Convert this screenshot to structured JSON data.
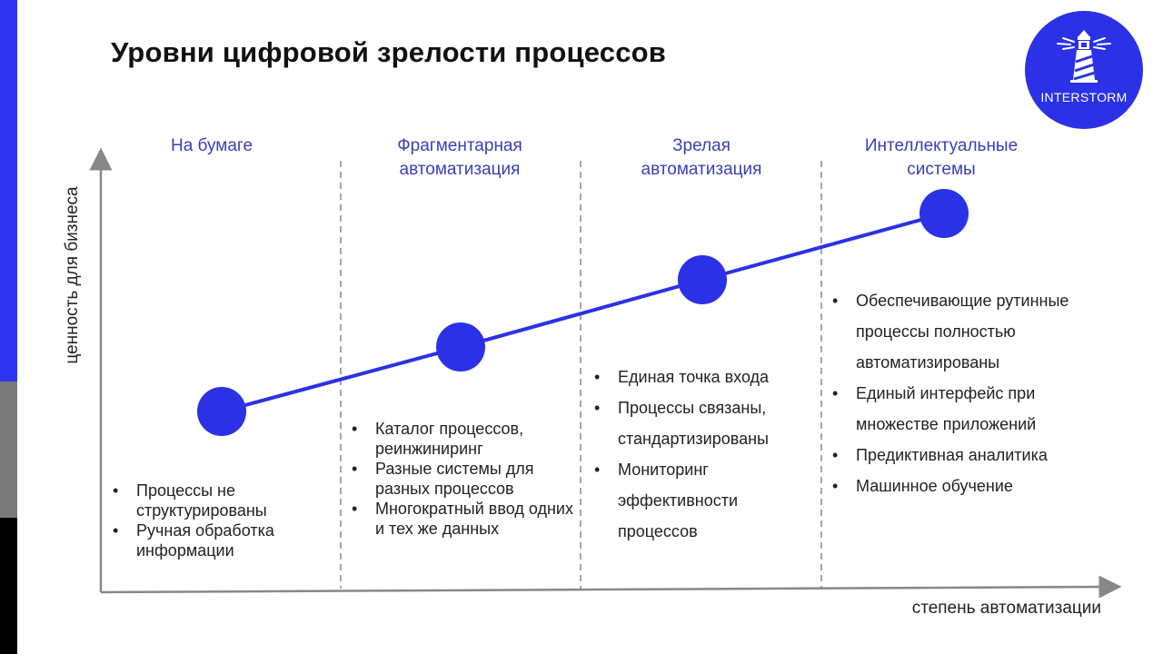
{
  "colors": {
    "accent": "#2b31e6",
    "stage_title": "#3a3fb8",
    "sidebar_blue": "#2f34f0",
    "sidebar_grey": "#7a7a7a",
    "sidebar_black": "#000000",
    "axis": "#888888"
  },
  "slide": {
    "title": "Уровни цифровой зрелости процессов"
  },
  "logo": {
    "text": "INTERSTORM",
    "icon": "lighthouse-icon"
  },
  "axes": {
    "y_label": "ценность для бизнеса",
    "x_label": "степень автоматизации"
  },
  "stages": [
    {
      "title_lines": [
        "На бумаге"
      ],
      "bullets": [
        "Процессы не структурированы",
        "Ручная обработка информации"
      ]
    },
    {
      "title_lines": [
        "Фрагментарная",
        "автоматизация"
      ],
      "bullets": [
        "Каталог процессов, реинжиниринг",
        "Разные системы для разных процессов",
        "Многократный ввод одних и тех же данных"
      ]
    },
    {
      "title_lines": [
        "Зрелая",
        "автоматизация"
      ],
      "bullets": [
        "Единая точка входа",
        "Процессы связаны, стандартизированы",
        "Мониторинг эффективности процессов"
      ]
    },
    {
      "title_lines": [
        "Интеллектуальные",
        "системы"
      ],
      "bullets": [
        "Обеспечивающие рутинные процессы полностью автоматизированы",
        "Единый интерфейс при множестве приложений",
        "Предиктивная аналитика",
        "Машинное обучение"
      ]
    }
  ]
}
